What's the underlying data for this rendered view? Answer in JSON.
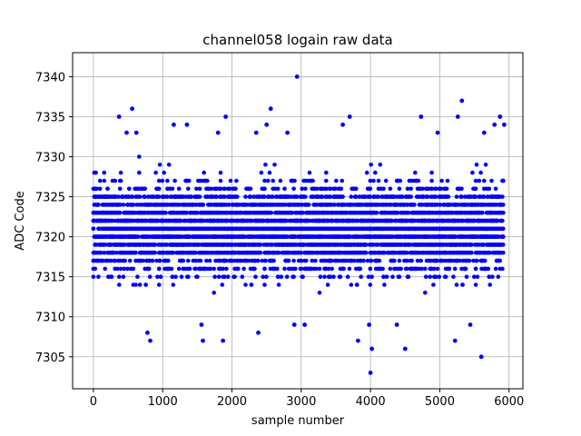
{
  "chart_data": {
    "type": "scatter",
    "title": "channel058 logain raw data",
    "xlabel": "sample number",
    "ylabel": "ADC Code",
    "xlim": [
      -300,
      6200
    ],
    "ylim": [
      7301,
      7343
    ],
    "xticks": [
      0,
      1000,
      2000,
      3000,
      4000,
      5000,
      6000
    ],
    "yticks": [
      7305,
      7310,
      7315,
      7320,
      7325,
      7330,
      7335,
      7340
    ],
    "grid": true,
    "marker_color": "#0000ff",
    "series": [
      {
        "name": "",
        "band_x_range": [
          0,
          5920
        ],
        "band_y_range": [
          7313,
          7328
        ],
        "points": [
          {
            "x": 2940,
            "y": 7340
          },
          {
            "x": 560,
            "y": 7336
          },
          {
            "x": 2560,
            "y": 7336
          },
          {
            "x": 5320,
            "y": 7337
          },
          {
            "x": 370,
            "y": 7335
          },
          {
            "x": 1910,
            "y": 7335
          },
          {
            "x": 3700,
            "y": 7335
          },
          {
            "x": 4730,
            "y": 7335
          },
          {
            "x": 5260,
            "y": 7335
          },
          {
            "x": 5870,
            "y": 7335
          },
          {
            "x": 1160,
            "y": 7334
          },
          {
            "x": 1350,
            "y": 7334
          },
          {
            "x": 2500,
            "y": 7334
          },
          {
            "x": 3600,
            "y": 7334
          },
          {
            "x": 5790,
            "y": 7334
          },
          {
            "x": 5930,
            "y": 7334
          },
          {
            "x": 480,
            "y": 7333
          },
          {
            "x": 620,
            "y": 7333
          },
          {
            "x": 1800,
            "y": 7333
          },
          {
            "x": 2350,
            "y": 7333
          },
          {
            "x": 2800,
            "y": 7333
          },
          {
            "x": 4970,
            "y": 7333
          },
          {
            "x": 5640,
            "y": 7333
          },
          {
            "x": 820,
            "y": 7307
          },
          {
            "x": 1580,
            "y": 7307
          },
          {
            "x": 1870,
            "y": 7307
          },
          {
            "x": 3820,
            "y": 7307
          },
          {
            "x": 5220,
            "y": 7307
          },
          {
            "x": 2380,
            "y": 7308
          },
          {
            "x": 780,
            "y": 7308
          },
          {
            "x": 4020,
            "y": 7306
          },
          {
            "x": 4500,
            "y": 7306
          },
          {
            "x": 5600,
            "y": 7305
          },
          {
            "x": 4000,
            "y": 7303
          },
          {
            "x": 2900,
            "y": 7309
          },
          {
            "x": 3050,
            "y": 7309
          },
          {
            "x": 1560,
            "y": 7309
          },
          {
            "x": 4380,
            "y": 7309
          },
          {
            "x": 5440,
            "y": 7309
          },
          {
            "x": 3980,
            "y": 7309
          }
        ]
      }
    ]
  }
}
